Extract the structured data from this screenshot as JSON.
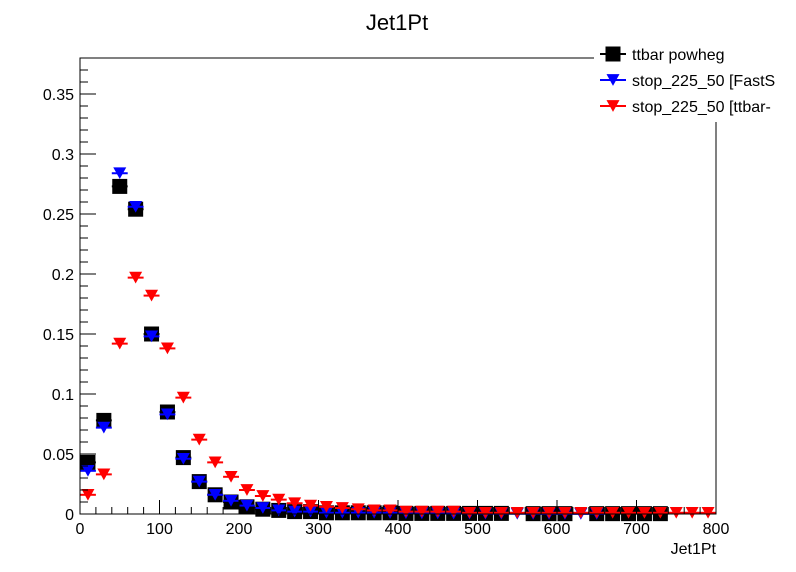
{
  "chart_data": {
    "type": "scatter",
    "title": "Jet1Pt",
    "xlabel": "Jet1Pt",
    "ylabel": "",
    "xlim": [
      0,
      800
    ],
    "ylim": [
      0,
      0.38
    ],
    "x_ticks": [
      "0",
      "100",
      "200",
      "300",
      "400",
      "500",
      "600",
      "700",
      "800"
    ],
    "y_ticks": [
      "0",
      "0.05",
      "0.1",
      "0.15",
      "0.2",
      "0.25",
      "0.3",
      "0.35"
    ],
    "x_tick_values": [
      0,
      100,
      200,
      300,
      400,
      500,
      600,
      700,
      800
    ],
    "y_tick_values": [
      0,
      0.05,
      0.1,
      0.15,
      0.2,
      0.25,
      0.3,
      0.35
    ],
    "grid": false,
    "legend_position": "top-right",
    "x": [
      10,
      30,
      50,
      70,
      90,
      110,
      130,
      150,
      170,
      190,
      210,
      230,
      250,
      270,
      290,
      310,
      330,
      350,
      370,
      390,
      410,
      430,
      450,
      470,
      490,
      510,
      530,
      550,
      570,
      590,
      610,
      630,
      650,
      670,
      690,
      710,
      730,
      750,
      770,
      790
    ],
    "series": [
      {
        "name": "ttbar powheg",
        "color": "#000000",
        "marker": "square",
        "values": [
          0.043,
          0.078,
          0.273,
          0.254,
          0.15,
          0.085,
          0.047,
          0.027,
          0.016,
          0.01,
          0.006,
          0.004,
          0.003,
          0.002,
          0.002,
          0.001,
          0.001,
          0.001,
          0.001,
          0.001,
          0.0005,
          0.0005,
          0.0005,
          0.0005,
          0.0005,
          0.0005,
          0.0005,
          null,
          0.0003,
          0.0003,
          0.0003,
          null,
          0.0003,
          0.0003,
          0.0003,
          0.0003,
          0.0003,
          null,
          null,
          null
        ]
      },
      {
        "name": "stop_225_50 [FastS",
        "color": "#0000ff",
        "marker": "triangle-down",
        "values": [
          0.036,
          0.072,
          0.284,
          0.256,
          0.148,
          0.083,
          0.046,
          0.027,
          0.016,
          0.011,
          0.007,
          0.005,
          0.003,
          0.002,
          0.002,
          0.001,
          0.001,
          0.001,
          0.001,
          0.0008,
          0.0006,
          0.0005,
          0.0004,
          0.0003,
          0.0003,
          0.0002,
          0.0002,
          0.0002,
          0.0001,
          0.0001,
          0.0001,
          0.0001,
          0.0001,
          null,
          null,
          null,
          null,
          null,
          null,
          null
        ]
      },
      {
        "name": "stop_225_50 [ttbar-",
        "color": "#ff0000",
        "marker": "triangle-down",
        "values": [
          0.016,
          0.033,
          0.142,
          0.197,
          0.182,
          0.138,
          0.097,
          0.062,
          0.043,
          0.031,
          0.02,
          0.015,
          0.012,
          0.009,
          0.007,
          0.006,
          0.005,
          0.004,
          0.003,
          0.003,
          0.002,
          0.002,
          0.002,
          0.002,
          0.001,
          0.001,
          0.001,
          0.001,
          0.001,
          0.001,
          0.001,
          0.001,
          0.001,
          0.001,
          0.001,
          0.001,
          0.001,
          0.001,
          0.001,
          0.001
        ]
      }
    ]
  }
}
